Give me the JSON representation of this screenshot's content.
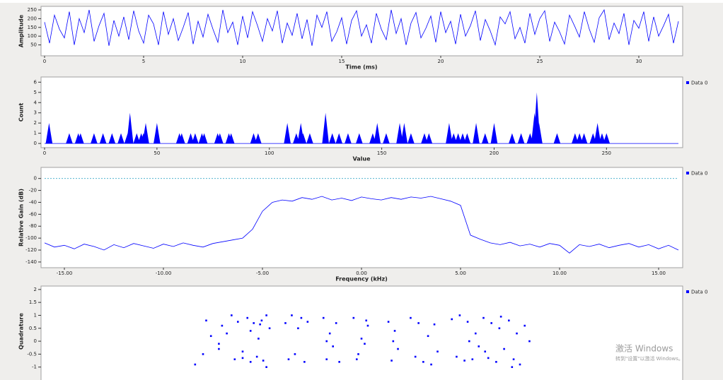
{
  "chart_data": [
    {
      "type": "line",
      "ylabel": "Amplitude",
      "xlabel": "Time (ms)",
      "color": "#0000ff",
      "x": [
        0,
        0.25,
        0.5,
        0.75,
        1,
        1.25,
        1.5,
        1.75,
        2,
        2.25,
        2.5,
        2.75,
        3,
        3.25,
        3.5,
        3.75,
        4,
        4.25,
        4.5,
        4.75,
        5,
        5.25,
        5.5,
        5.75,
        6,
        6.25,
        6.5,
        6.75,
        7,
        7.25,
        7.5,
        7.75,
        8,
        8.25,
        8.5,
        8.75,
        9,
        9.25,
        9.5,
        9.75,
        10,
        10.25,
        10.5,
        10.75,
        11,
        11.25,
        11.5,
        11.75,
        12,
        12.25,
        12.5,
        12.75,
        13,
        13.25,
        13.5,
        13.75,
        14,
        14.25,
        14.5,
        14.75,
        15,
        15.25,
        15.5,
        15.75,
        16,
        16.25,
        16.5,
        16.75,
        17,
        17.25,
        17.5,
        17.75,
        18,
        18.25,
        18.5,
        18.75,
        19,
        19.25,
        19.5,
        19.75,
        20,
        20.25,
        20.5,
        20.75,
        21,
        21.25,
        21.5,
        21.75,
        22,
        22.25,
        22.5,
        22.75,
        23,
        23.25,
        23.5,
        23.75,
        24,
        24.25,
        24.5,
        24.75,
        25,
        25.25,
        25.5,
        25.75,
        26,
        26.25,
        26.5,
        26.75,
        27,
        27.25,
        27.5,
        27.75,
        28,
        28.25,
        28.5,
        28.75,
        29,
        29.25,
        29.5,
        29.75,
        30,
        30.25,
        30.5,
        30.75,
        31,
        31.25,
        31.5,
        31.75,
        32
      ],
      "values": [
        180,
        60,
        220,
        140,
        90,
        240,
        50,
        200,
        120,
        250,
        70,
        160,
        230,
        45,
        190,
        100,
        210,
        80,
        245,
        130,
        60,
        220,
        170,
        50,
        240,
        110,
        200,
        75,
        150,
        235,
        55,
        185,
        95,
        225,
        140,
        65,
        250,
        120,
        180,
        50,
        215,
        90,
        240,
        160,
        70,
        200,
        130,
        245,
        60,
        175,
        105,
        230,
        85,
        195,
        45,
        220,
        150,
        240,
        70,
        125,
        205,
        55,
        190,
        245,
        100,
        165,
        60,
        230,
        140,
        80,
        250,
        115,
        200,
        50,
        175,
        235,
        90,
        145,
        215,
        65,
        240,
        120,
        185,
        55,
        225,
        100,
        160,
        245,
        75,
        195,
        130,
        50,
        210,
        170,
        240,
        85,
        150,
        60,
        230,
        110,
        200,
        245,
        70,
        180,
        125,
        55,
        220,
        160,
        95,
        240,
        140,
        65,
        205,
        250,
        80,
        175,
        115,
        230,
        50,
        190,
        145,
        240,
        70,
        210,
        100,
        160,
        225,
        60,
        185
      ],
      "xlim": [
        0,
        32
      ],
      "xticks": [
        0,
        5,
        10,
        15,
        20,
        25,
        30
      ],
      "ylim": [
        0,
        258
      ],
      "yticks": [
        50,
        100,
        150,
        200,
        250
      ]
    },
    {
      "type": "area",
      "ylabel": "Count",
      "xlabel": "Value",
      "series": [
        {
          "name": "Data 0",
          "color": "#0000ff",
          "x": [
            2,
            11,
            15,
            16,
            22,
            26,
            30,
            34,
            37,
            38,
            41,
            43,
            44,
            45,
            50,
            60,
            61,
            65,
            67,
            70,
            71,
            77,
            78,
            82,
            83,
            93,
            95,
            108,
            112,
            114,
            115,
            118,
            125,
            128,
            131,
            135,
            140,
            146,
            148,
            152,
            158,
            160,
            163,
            169,
            171,
            180,
            182,
            184,
            186,
            188,
            192,
            196,
            200,
            208,
            212,
            216,
            218,
            219,
            220,
            228,
            236,
            238,
            240,
            244,
            246,
            248,
            250
          ],
          "values": [
            2,
            1,
            1,
            1,
            1,
            1,
            1,
            1,
            1,
            3,
            1,
            1,
            1,
            2,
            2,
            1,
            1,
            1,
            1,
            1,
            1,
            1,
            1,
            1,
            1,
            1,
            1,
            2,
            1,
            2,
            1,
            1,
            3,
            1,
            1,
            1,
            1,
            1,
            2,
            1,
            2,
            2,
            1,
            1,
            1,
            2,
            1,
            1,
            1,
            1,
            2,
            1,
            2,
            1,
            1,
            1,
            3,
            5,
            2,
            1,
            1,
            1,
            1,
            1,
            2,
            1,
            1
          ]
        }
      ],
      "xlim": [
        0,
        282
      ],
      "xticks": [
        0,
        50,
        100,
        150,
        200,
        250
      ],
      "ylim": [
        -0.2,
        6.3
      ],
      "yticks": [
        0,
        1,
        2,
        3,
        4,
        5,
        6
      ]
    },
    {
      "type": "line",
      "ylabel": "Relative Gain (dB)",
      "xlabel": "Frequency (kHz)",
      "series": [
        {
          "name": "Data 0",
          "color": "#0000ff",
          "x": [
            -16,
            -15.5,
            -15,
            -14.5,
            -14,
            -13.5,
            -13,
            -12.5,
            -12,
            -11.5,
            -11,
            -10.5,
            -10,
            -9.5,
            -9,
            -8.5,
            -8,
            -7.5,
            -7,
            -6.5,
            -6,
            -5.5,
            -5,
            -4.5,
            -4,
            -3.5,
            -3,
            -2.5,
            -2,
            -1.5,
            -1,
            -0.5,
            0,
            0.5,
            1,
            1.5,
            2,
            2.5,
            3,
            3.5,
            4,
            4.5,
            5,
            5.5,
            6,
            6.5,
            7,
            7.5,
            8,
            8.5,
            9,
            9.5,
            10,
            10.5,
            11,
            11.5,
            12,
            12.5,
            13,
            13.5,
            14,
            14.5,
            15,
            15.5,
            16
          ],
          "values": [
            -108,
            -115,
            -112,
            -118,
            -110,
            -114,
            -120,
            -111,
            -116,
            -109,
            -113,
            -117,
            -110,
            -114,
            -108,
            -112,
            -115,
            -109,
            -106,
            -103,
            -100,
            -85,
            -55,
            -40,
            -36,
            -38,
            -32,
            -35,
            -30,
            -36,
            -33,
            -37,
            -31,
            -34,
            -36,
            -32,
            -35,
            -31,
            -33,
            -30,
            -34,
            -38,
            -45,
            -95,
            -102,
            -108,
            -111,
            -107,
            -113,
            -110,
            -115,
            -109,
            -112,
            -125,
            -111,
            -114,
            -110,
            -116,
            -112,
            -109,
            -115,
            -111,
            -118,
            -112,
            -120
          ]
        }
      ],
      "xlim": [
        -16,
        16
      ],
      "xticks": [
        {
          "value": -15,
          "label": "-15.00"
        },
        {
          "value": -10,
          "label": "-10.00"
        },
        {
          "value": -5,
          "label": "-5.00"
        },
        {
          "value": 0,
          "label": "0.00"
        },
        {
          "value": 5,
          "label": "5.00"
        },
        {
          "value": 10,
          "label": "10.00"
        },
        {
          "value": 15,
          "label": "15.00"
        }
      ],
      "ylim": [
        -146,
        15
      ],
      "yticks": [
        0,
        -20,
        -40,
        -60,
        -80,
        -100,
        -120,
        -140
      ]
    },
    {
      "type": "scatter",
      "ylabel": "Quadrature",
      "series": [
        {
          "name": "Data 0",
          "color": "#0000ff",
          "x": [
            -1.05,
            -1.0,
            -0.95,
            -0.9,
            -0.98,
            -0.88,
            -0.82,
            -0.8,
            -0.78,
            -0.75,
            -0.72,
            -0.7,
            -0.68,
            -0.66,
            -0.65,
            -0.63,
            -0.62,
            -0.6,
            -0.6,
            -0.58,
            -0.85,
            -0.9,
            -0.7,
            -0.75,
            -0.64,
            -0.48,
            -0.46,
            -0.44,
            -0.42,
            -0.4,
            -0.38,
            -0.36,
            -0.34,
            -0.24,
            -0.22,
            -0.2,
            -0.18,
            -0.16,
            -0.14,
            -0.22,
            -0.05,
            -0.03,
            0.0,
            0.02,
            0.04,
            -0.02,
            0.03,
            0.17,
            0.19,
            0.21,
            0.23,
            0.2,
            0.31,
            0.34,
            0.36,
            0.39,
            0.42,
            0.44,
            0.46,
            0.48,
            0.57,
            0.6,
            0.62,
            0.65,
            0.67,
            0.7,
            0.72,
            0.74,
            0.77,
            0.8,
            0.82,
            0.85,
            0.87,
            0.9,
            0.93,
            0.96,
            0.98,
            1.0,
            1.03,
            1.06,
            0.68,
            0.78,
            0.88,
            0.95
          ],
          "y": [
            -0.9,
            -0.5,
            0.2,
            -0.1,
            0.8,
            0.6,
            1.0,
            -0.7,
            0.75,
            -0.65,
            0.9,
            -0.8,
            0.7,
            -0.6,
            0.1,
            0.8,
            -0.75,
            1.0,
            -1.0,
            0.5,
            0.3,
            -0.3,
            0.4,
            -0.4,
            0.65,
            0.7,
            -0.7,
            1.0,
            -0.5,
            0.5,
            0.9,
            -0.8,
            0.75,
            0.9,
            -0.7,
            0.3,
            -0.2,
            0.7,
            -0.8,
            0.0,
            0.9,
            -0.7,
            0.1,
            -0.1,
            0.6,
            -0.5,
            0.8,
            0.75,
            -0.75,
            0.4,
            -0.3,
            0.0,
            0.9,
            -0.6,
            0.7,
            -0.8,
            0.2,
            -0.9,
            0.65,
            -0.4,
            0.85,
            -0.6,
            1.0,
            -0.75,
            0.75,
            -0.7,
            0.3,
            -0.2,
            0.9,
            -0.65,
            0.7,
            -0.8,
            0.5,
            -0.3,
            0.8,
            -0.7,
            0.3,
            -0.9,
            0.6,
            0.0,
            0.0,
            -0.4,
            0.95,
            -1.0
          ]
        }
      ],
      "xlim": [
        -2,
        2
      ],
      "ylim": [
        -1.5,
        2.05
      ],
      "yticks": [
        2,
        1.5,
        1,
        0.5,
        0,
        -0.5,
        -1
      ]
    }
  ],
  "watermark": {
    "title": "激活 Windows",
    "subtitle": "转到\"设置\"以激活 Windows。"
  }
}
